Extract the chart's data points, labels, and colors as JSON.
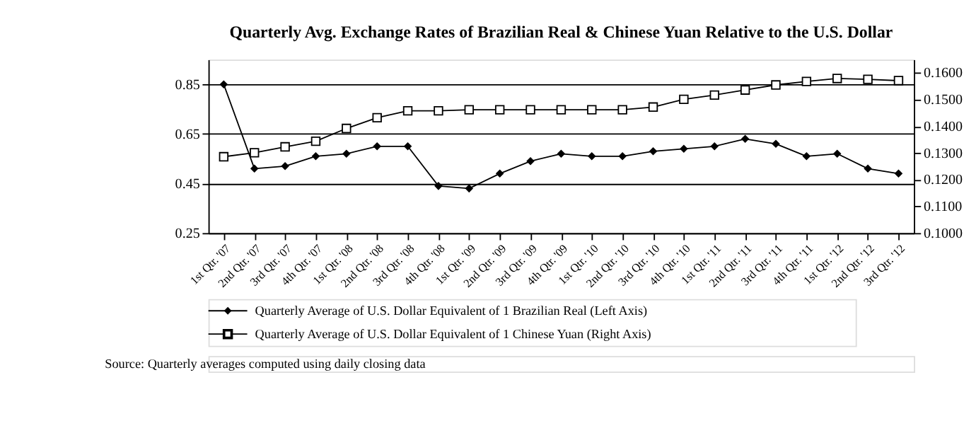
{
  "chart_data": {
    "type": "line",
    "title": "Quarterly Avg. Exchange Rates of Brazilian Real & Chinese Yuan Relative to the U.S. Dollar",
    "categories": [
      "1st Qtr. '07",
      "2nd Qtr. '07",
      "3rd Qtr. '07",
      "4th Qtr. '07",
      "1st Qtr. '08",
      "2nd Qtr. '08",
      "3rd Qtr. '08",
      "4th Qtr. '08",
      "1st Qtr. '09",
      "2nd Qtr. '09",
      "3rd Qtr. '09",
      "4th Qtr. '09",
      "1st Qtr. '10",
      "2nd Qtr. '10",
      "3rd Qtr. '10",
      "4th Qtr. '10",
      "1st Qtr. '11",
      "2nd Qtr. '11",
      "3rd Qtr. '11",
      "4th Qtr. '11",
      "1st Qtr. '12",
      "2nd Qtr. '12",
      "3rd Qtr. '12"
    ],
    "series": [
      {
        "name": "Quarterly Average of U.S. Dollar Equivalent of 1 Brazilian Real (Left Axis)",
        "color": "#000000",
        "marker": "diamond",
        "values": [
          0.85,
          0.51,
          0.52,
          0.56,
          0.57,
          0.6,
          0.6,
          0.44,
          0.43,
          0.49,
          0.54,
          0.57,
          0.56,
          0.56,
          0.58,
          0.59,
          0.6,
          0.63,
          0.61,
          0.56,
          0.57,
          0.51,
          0.49
        ]
      },
      {
        "name": "Quarterly Average of U.S. Dollar Equivalent of 1 Chinese Yuan (Right Axis)",
        "color": "#000000",
        "marker": "square",
        "axis": "y2",
        "values": [
          0.1286,
          0.1301,
          0.1323,
          0.1344,
          0.1392,
          0.1432,
          0.1458,
          0.1458,
          0.1462,
          0.1462,
          0.1462,
          0.1462,
          0.1462,
          0.1462,
          0.1472,
          0.1501,
          0.1517,
          0.1536,
          0.1555,
          0.1568,
          0.1579,
          0.1576,
          0.1571
        ]
      }
    ],
    "ylim": [
      0.25,
      0.95
    ],
    "yticks": [
      0.25,
      0.45,
      0.65,
      0.85
    ],
    "y2lim": [
      0.1,
      0.165
    ],
    "y2ticks": [
      {
        "value": 0.1,
        "label": "0.1000"
      },
      {
        "value": 0.11,
        "label": "0.1100"
      },
      {
        "value": 0.12,
        "label": "0.1200"
      },
      {
        "value": 0.13,
        "label": "0.1300"
      },
      {
        "value": 0.14,
        "label": "0.1400"
      },
      {
        "value": 0.15,
        "label": "0.1500"
      },
      {
        "value": 0.16,
        "label": "0.1600"
      }
    ],
    "grid": "y",
    "legend": "bottom",
    "line_style": "solid",
    "annotations": [
      "Source:  Quarterly averages computed using daily closing data"
    ]
  }
}
